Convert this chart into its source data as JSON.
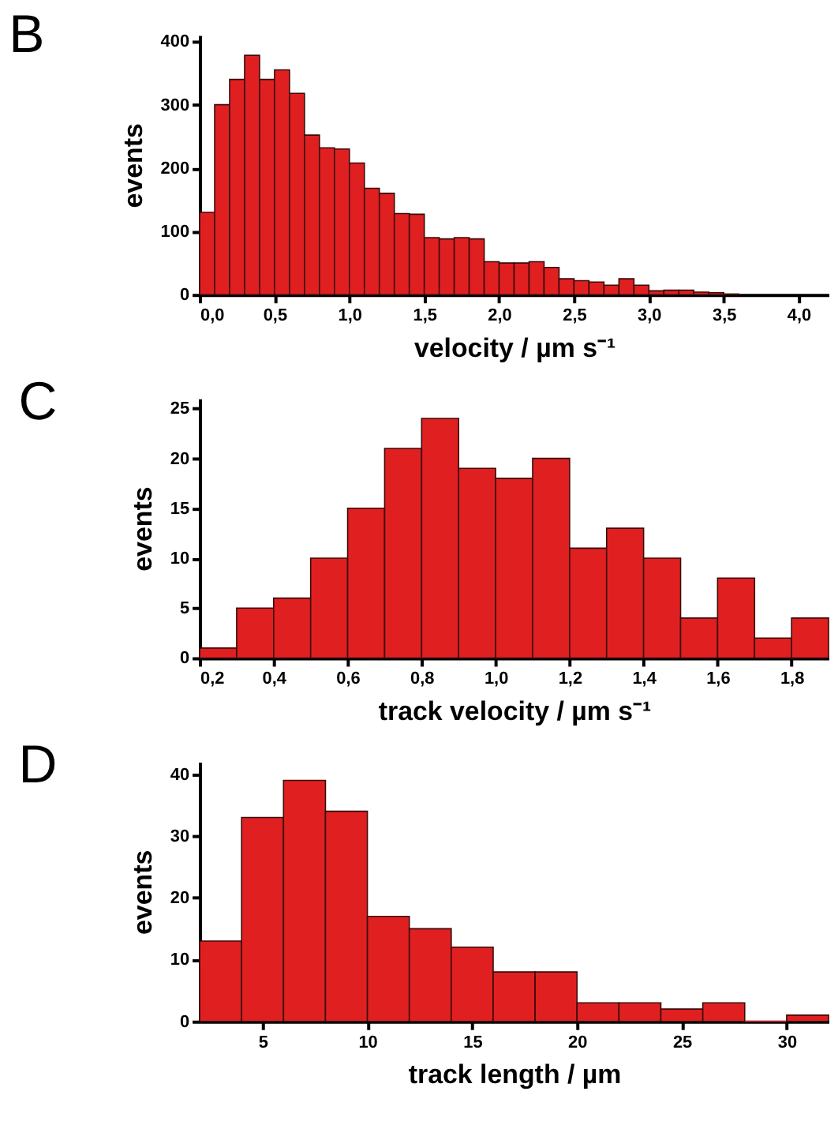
{
  "chart_data": [
    {
      "type": "histogram",
      "title": "B",
      "xlabel": "velocity / µm s⁻¹",
      "ylabel": "events",
      "color": "#e02020",
      "bins": [
        0.0,
        0.1,
        0.2,
        0.3,
        0.4,
        0.5,
        0.6,
        0.7,
        0.8,
        0.9,
        1.0,
        1.1,
        1.2,
        1.3,
        1.4,
        1.5,
        1.6,
        1.7,
        1.8,
        1.9,
        2.0,
        2.1,
        2.2,
        2.3,
        2.4,
        2.5,
        2.6,
        2.7,
        2.8,
        2.9,
        3.0,
        3.1,
        3.2,
        3.3,
        3.4,
        3.5,
        3.6
      ],
      "values": [
        130,
        300,
        340,
        378,
        340,
        355,
        318,
        252,
        232,
        230,
        208,
        168,
        160,
        128,
        127,
        90,
        88,
        90,
        88,
        52,
        50,
        50,
        52,
        43,
        25,
        22,
        20,
        15,
        25,
        15,
        6,
        7,
        7,
        4,
        3,
        1
      ],
      "xlim": [
        0,
        4.2
      ],
      "ylim": [
        0,
        410
      ],
      "xticks": [
        {
          "value": 0,
          "label": "0,0"
        },
        {
          "value": 0.5,
          "label": "0,5"
        },
        {
          "value": 1,
          "label": "1,0"
        },
        {
          "value": 1.5,
          "label": "1,5"
        },
        {
          "value": 2,
          "label": "2,0"
        },
        {
          "value": 2.5,
          "label": "2,5"
        },
        {
          "value": 3,
          "label": "3,0"
        },
        {
          "value": 3.5,
          "label": "3,5"
        },
        {
          "value": 4,
          "label": "4,0"
        }
      ],
      "yticks": [
        0,
        100,
        200,
        300,
        400
      ],
      "grid": false
    },
    {
      "type": "histogram",
      "title": "C",
      "xlabel": "track velocity / µm s⁻¹",
      "ylabel": "events",
      "color": "#e02020",
      "bins": [
        0.2,
        0.3,
        0.4,
        0.5,
        0.6,
        0.7,
        0.8,
        0.9,
        1.0,
        1.1,
        1.2,
        1.3,
        1.4,
        1.5,
        1.6,
        1.7,
        1.8,
        1.9
      ],
      "values": [
        1,
        5,
        6,
        10,
        15,
        21,
        24,
        19,
        18,
        20,
        11,
        13,
        10,
        4,
        8,
        2,
        4
      ],
      "xlim": [
        0.2,
        1.9
      ],
      "ylim": [
        0,
        26
      ],
      "xticks": [
        {
          "value": 0.2,
          "label": "0,2"
        },
        {
          "value": 0.4,
          "label": "0,4"
        },
        {
          "value": 0.6,
          "label": "0,6"
        },
        {
          "value": 0.8,
          "label": "0,8"
        },
        {
          "value": 1.0,
          "label": "1,0"
        },
        {
          "value": 1.2,
          "label": "1,2"
        },
        {
          "value": 1.4,
          "label": "1,4"
        },
        {
          "value": 1.6,
          "label": "1,6"
        },
        {
          "value": 1.8,
          "label": "1,8"
        }
      ],
      "yticks": [
        0,
        5,
        10,
        15,
        20,
        25
      ],
      "grid": false
    },
    {
      "type": "histogram",
      "title": "D",
      "xlabel": "track length / µm",
      "ylabel": "events",
      "color": "#e02020",
      "bins": [
        2,
        4,
        6,
        8,
        10,
        12,
        14,
        16,
        18,
        20,
        22,
        24,
        26,
        28,
        30,
        32
      ],
      "values": [
        13,
        33,
        39,
        34,
        17,
        15,
        12,
        8,
        8,
        3,
        3,
        2,
        3,
        0,
        1
      ],
      "xlim": [
        2,
        32
      ],
      "ylim": [
        0,
        42
      ],
      "xticks": [
        5,
        10,
        15,
        20,
        25,
        30
      ],
      "yticks": [
        0,
        10,
        20,
        30,
        40
      ],
      "grid": false
    }
  ]
}
